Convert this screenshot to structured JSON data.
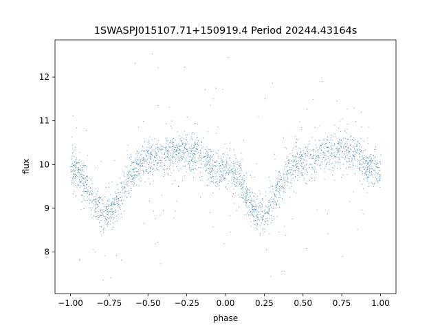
{
  "chart_data": {
    "type": "scatter",
    "title": "1SWASPJ015107.71+150919.4 Period 20244.43164s",
    "xlabel": "phase",
    "ylabel": "flux",
    "xlim": [
      -1.1,
      1.1
    ],
    "ylim": [
      7.05,
      12.85
    ],
    "xticks": [
      -1.0,
      -0.75,
      -0.5,
      -0.25,
      0.0,
      0.25,
      0.5,
      0.75,
      1.0
    ],
    "xtick_labels": [
      "−1.00",
      "−0.75",
      "−0.50",
      "−0.25",
      "0.00",
      "0.25",
      "0.50",
      "0.75",
      "1.00"
    ],
    "yticks": [
      8,
      9,
      10,
      11,
      12
    ],
    "ytick_labels": [
      "8",
      "9",
      "10",
      "11",
      "12"
    ],
    "grid": false,
    "marker_color": "#1f77b4",
    "series": [
      {
        "phase": [
          -1.0,
          -0.95,
          -0.9,
          -0.85,
          -0.8,
          -0.75,
          -0.7,
          -0.65,
          -0.6,
          -0.55,
          -0.5,
          -0.45,
          -0.4,
          -0.35,
          -0.3,
          -0.25,
          -0.2,
          -0.15,
          -0.1,
          -0.05,
          0.0,
          0.05,
          0.1,
          0.15,
          0.2,
          0.25,
          0.3,
          0.35,
          0.4,
          0.45,
          0.5,
          0.55,
          0.6,
          0.65,
          0.7,
          0.75,
          0.8,
          0.85,
          0.9,
          0.95,
          1.0
        ],
        "mean_flux": [
          9.95,
          9.8,
          9.55,
          9.15,
          8.85,
          8.85,
          9.15,
          9.55,
          9.85,
          10.0,
          10.1,
          10.15,
          10.2,
          10.25,
          10.3,
          10.3,
          10.25,
          10.15,
          10.0,
          9.85,
          9.95,
          9.8,
          9.55,
          9.15,
          8.85,
          8.85,
          9.15,
          9.55,
          9.85,
          10.0,
          10.1,
          10.15,
          10.2,
          10.25,
          10.3,
          10.3,
          10.25,
          10.15,
          10.0,
          9.9,
          9.95
        ]
      }
    ]
  }
}
